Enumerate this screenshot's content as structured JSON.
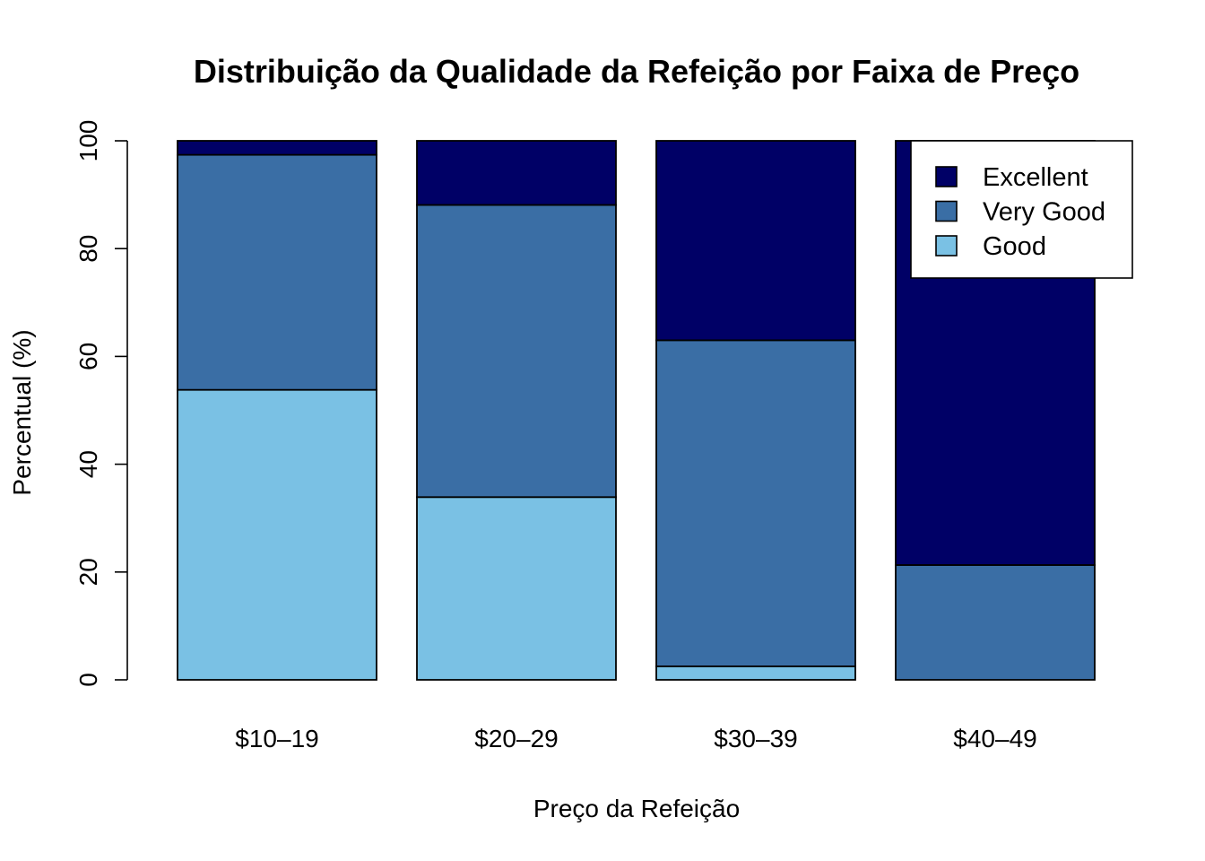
{
  "chart_data": {
    "type": "bar",
    "stacked": true,
    "title": "Distribuição da Qualidade da Refeição por Faixa de Preço",
    "xlabel": "Preço da Refeição",
    "ylabel": "Percentual (%)",
    "ylim": [
      0,
      100
    ],
    "yticks": [
      0,
      20,
      40,
      60,
      80,
      100
    ],
    "categories": [
      "$10–19",
      "$20–29",
      "$30–39",
      "$40–49"
    ],
    "series": [
      {
        "name": "Good",
        "color": "#7AC1E4",
        "values": [
          53.8,
          33.9,
          2.5,
          0.0
        ]
      },
      {
        "name": "Very Good",
        "color": "#3A6EA5",
        "values": [
          43.6,
          54.2,
          60.5,
          21.3
        ]
      },
      {
        "name": "Excellent",
        "color": "#000066",
        "values": [
          2.6,
          11.9,
          37.0,
          78.7
        ]
      }
    ],
    "legend": {
      "position": "top-right",
      "order": [
        "Excellent",
        "Very Good",
        "Good"
      ]
    },
    "grid": false
  }
}
